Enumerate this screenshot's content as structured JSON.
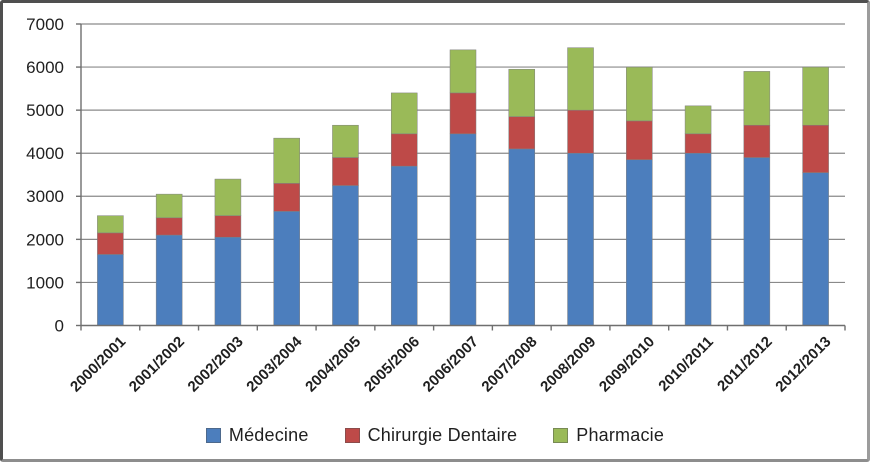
{
  "frame": {
    "background": "#ffffff",
    "border_color": "#4f4f4f"
  },
  "chart_data": {
    "type": "bar",
    "stacked": true,
    "title": "",
    "xlabel": "",
    "ylabel": "",
    "categories": [
      "2000/2001",
      "2001/2002",
      "2002/2003",
      "2003/2004",
      "2004/2005",
      "2005/2006",
      "2006/2007",
      "2007/2008",
      "2008/2009",
      "2009/2010",
      "2010/2011",
      "2011/2012",
      "2012/2013"
    ],
    "series": [
      {
        "name": "Médecine",
        "color": "#4C7EBD",
        "values": [
          1650,
          2100,
          2050,
          2650,
          3250,
          3700,
          4450,
          4100,
          4000,
          3850,
          4000,
          3900,
          3550
        ]
      },
      {
        "name": "Chirurgie Dentaire",
        "color": "#BE4A48",
        "values": [
          500,
          400,
          500,
          650,
          650,
          750,
          950,
          750,
          1000,
          900,
          450,
          750,
          1100
        ]
      },
      {
        "name": "Pharmacie",
        "color": "#9ABA58",
        "values": [
          400,
          550,
          850,
          1050,
          750,
          950,
          1000,
          1100,
          1450,
          1250,
          650,
          1250,
          1350
        ]
      }
    ],
    "stack_totals": [
      2550,
      3050,
      3400,
      4350,
      4650,
      5400,
      6400,
      5950,
      6450,
      6000,
      5100,
      5900,
      6000
    ],
    "ylim": [
      0,
      7000
    ],
    "ytick_interval": 1000,
    "ytick_labels": [
      "0",
      "1000",
      "2000",
      "3000",
      "4000",
      "5000",
      "6000",
      "7000"
    ],
    "grid": true,
    "gridline_color": "#8a8a8a",
    "axis_color": "#6f6f6f",
    "label_color": "#1f1f1f",
    "legend_position": "bottom"
  }
}
